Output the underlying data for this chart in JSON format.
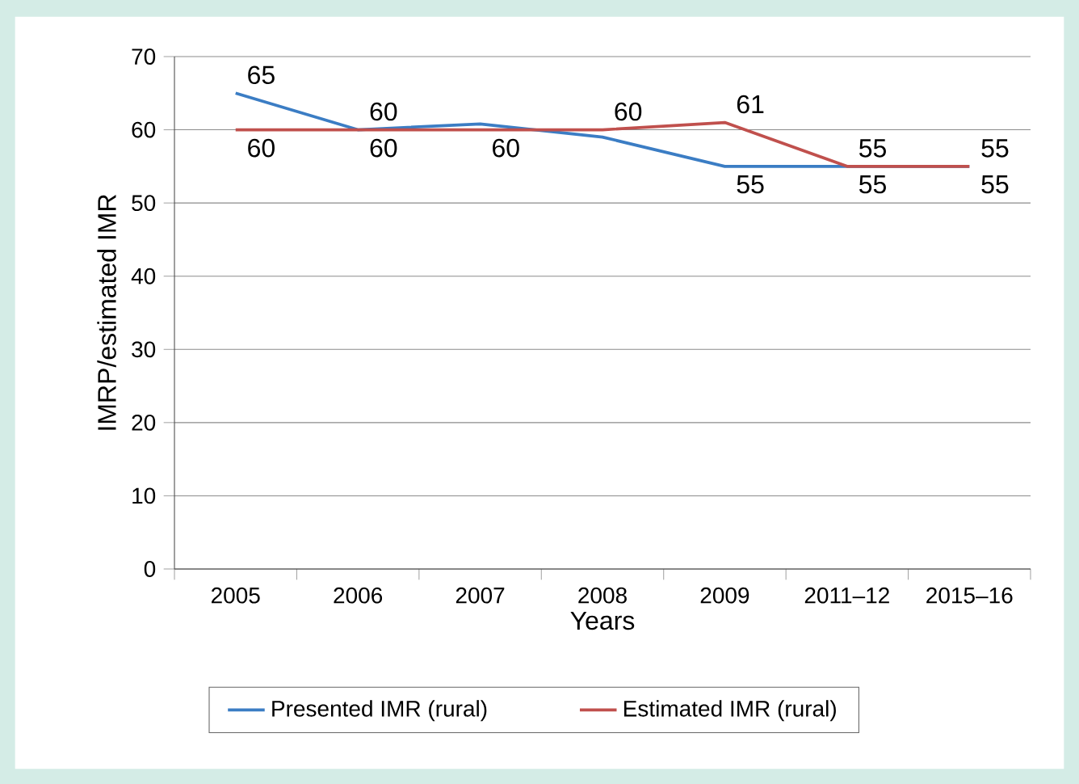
{
  "chart_data": {
    "type": "line",
    "xlabel": "Years",
    "ylabel": "IMRP/estimated IMR",
    "categories": [
      "2005",
      "2006",
      "2007",
      "2008",
      "2009",
      "2011–12",
      "2015–16"
    ],
    "series": [
      {
        "name": "Presented IMR (rural)",
        "color": "#3b7dc4",
        "values": [
          65,
          60,
          60.8,
          59,
          55,
          55,
          55
        ],
        "value_labels": [
          "65",
          "60",
          null,
          null,
          "55",
          "55",
          "55"
        ]
      },
      {
        "name": "Estimated IMR (rural)",
        "color": "#c0504d",
        "values": [
          60,
          60,
          60,
          60,
          61,
          55,
          55
        ],
        "value_labels": [
          "60",
          "60",
          "60",
          "60",
          "61",
          "55",
          "55"
        ]
      }
    ],
    "ylim": [
      0,
      70
    ],
    "yticks": [
      0,
      10,
      20,
      30,
      40,
      50,
      60,
      70
    ],
    "grid": "y",
    "legend": "bottom",
    "marker": "none",
    "line_style": "solid"
  }
}
